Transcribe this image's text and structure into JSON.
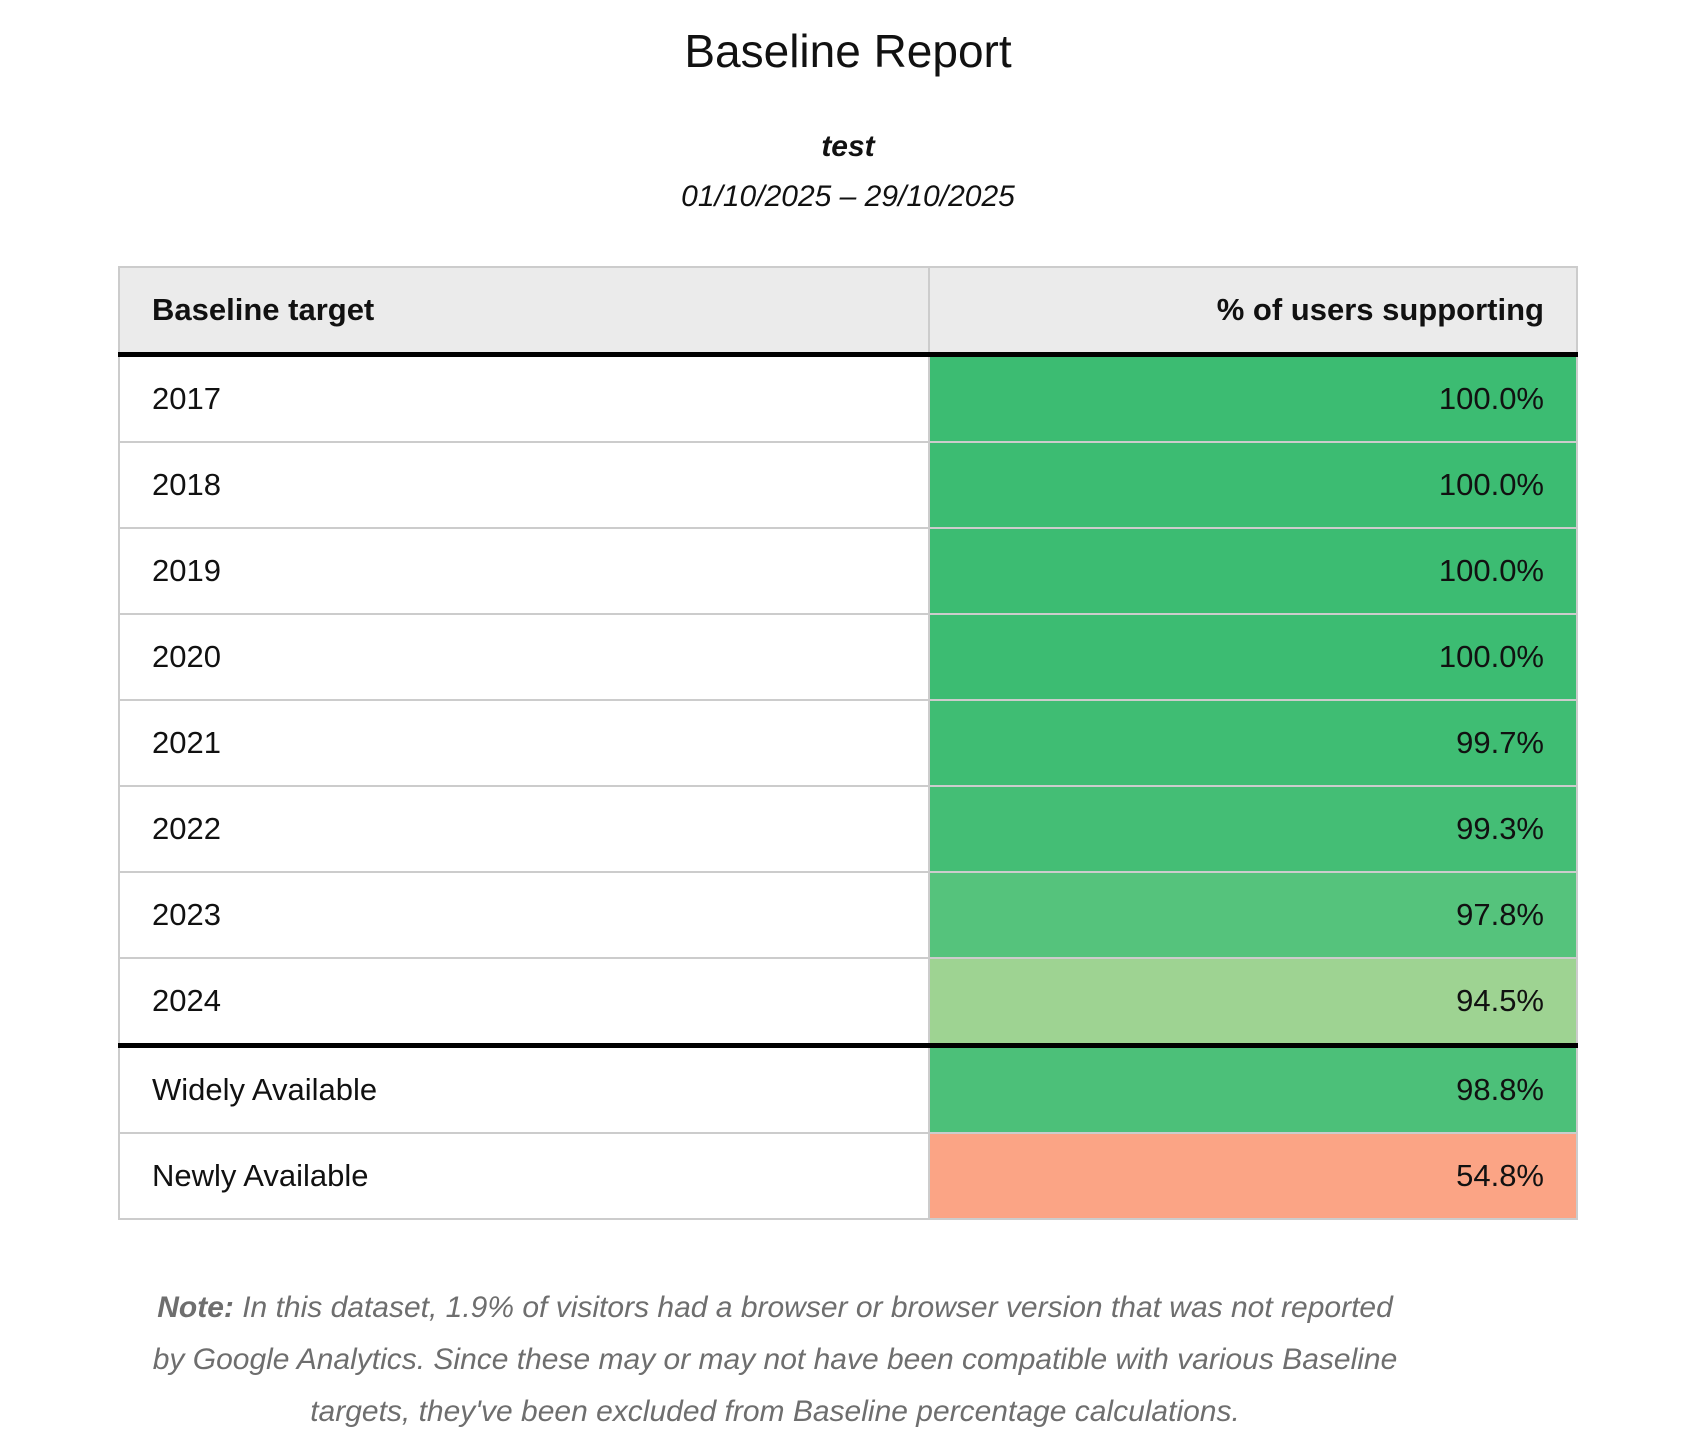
{
  "report": {
    "title": "Baseline Report",
    "subtitle": "test",
    "date_range": "01/10/2025 – 29/10/2025"
  },
  "table": {
    "columns": {
      "target": "Baseline target",
      "percent": "% of users supporting"
    },
    "rows": [
      {
        "target": "2017",
        "value": "100.0%",
        "color": "#3cbc72",
        "section_start": false
      },
      {
        "target": "2018",
        "value": "100.0%",
        "color": "#3cbc72",
        "section_start": false
      },
      {
        "target": "2019",
        "value": "100.0%",
        "color": "#3cbc72",
        "section_start": false
      },
      {
        "target": "2020",
        "value": "100.0%",
        "color": "#3cbc72",
        "section_start": false
      },
      {
        "target": "2021",
        "value": "99.7%",
        "color": "#3fbd73",
        "section_start": false
      },
      {
        "target": "2022",
        "value": "99.3%",
        "color": "#44be75",
        "section_start": false
      },
      {
        "target": "2023",
        "value": "97.8%",
        "color": "#55c37c",
        "section_start": false
      },
      {
        "target": "2024",
        "value": "94.5%",
        "color": "#9ed392",
        "section_start": false
      },
      {
        "target": "Widely Available",
        "value": "98.8%",
        "color": "#4cc079",
        "section_start": true
      },
      {
        "target": "Newly Available",
        "value": "54.8%",
        "color": "#fba485",
        "section_start": false
      }
    ]
  },
  "note": {
    "label": "Note:",
    "text": " In this dataset, 1.9% of visitors had a browser or browser version that was not reported by Google Analytics. Since these may or may not have been compatible with various Baseline targets, they've been excluded from Baseline percentage calculations."
  },
  "chart_data": {
    "type": "table",
    "title": "Baseline Report",
    "subtitle": "test",
    "date_range": "01/10/2025 – 29/10/2025",
    "columns": [
      "Baseline target",
      "% of users supporting"
    ],
    "categories": [
      "2017",
      "2018",
      "2019",
      "2020",
      "2021",
      "2022",
      "2023",
      "2024",
      "Widely Available",
      "Newly Available"
    ],
    "values": [
      100.0,
      100.0,
      100.0,
      100.0,
      99.7,
      99.3,
      97.8,
      94.5,
      98.8,
      54.8
    ],
    "value_labels": [
      "100.0%",
      "100.0%",
      "100.0%",
      "100.0%",
      "99.7%",
      "99.3%",
      "97.8%",
      "94.5%",
      "98.8%",
      "54.8%"
    ],
    "cell_colors": [
      "#3cbc72",
      "#3cbc72",
      "#3cbc72",
      "#3cbc72",
      "#3fbd73",
      "#44be75",
      "#55c37c",
      "#9ed392",
      "#4cc079",
      "#fba485"
    ],
    "color_scale": {
      "high": "#3cbc72",
      "mid": "#9ed392",
      "low": "#fba485"
    },
    "note": "Note: In this dataset, 1.9% of visitors had a browser or browser version that was not reported by Google Analytics. Since these may or may not have been compatible with various Baseline targets, they've been excluded from Baseline percentage calculations."
  }
}
